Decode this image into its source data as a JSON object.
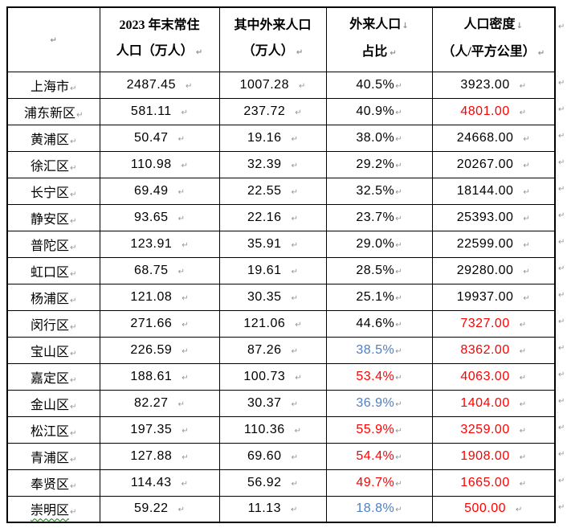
{
  "marks": {
    "paragraph": "↵",
    "line_break": "↓"
  },
  "colors": {
    "red": "#ff0000",
    "blue": "#4d7ec4",
    "black": "#000000",
    "mark": "#8c959e",
    "squiggle": "#067d06"
  },
  "header": {
    "col_resident_line1": "2023 年末常住",
    "col_resident_line2": "人口（万人）",
    "col_migrant_line1": "其中外来人口",
    "col_migrant_line2": "（万人）",
    "col_pct_line1": "外来人口",
    "col_pct_line2": "占比",
    "col_density_line1": "人口密度",
    "col_density_line2": "（人/平方公里）"
  },
  "rows": [
    {
      "district": "上海市",
      "resident": "2487.45",
      "migrant": "1007.28",
      "pct": "40.5%",
      "density": "3923.00",
      "pct_color": "black",
      "density_color": "black",
      "misspell": false
    },
    {
      "district": "浦东新区",
      "resident": "581.11",
      "migrant": "237.72",
      "pct": "40.9%",
      "density": "4801.00",
      "pct_color": "black",
      "density_color": "red",
      "misspell": false
    },
    {
      "district": "黄浦区",
      "resident": "50.47",
      "migrant": "19.16",
      "pct": "38.0%",
      "density": "24668.00",
      "pct_color": "black",
      "density_color": "black",
      "misspell": false
    },
    {
      "district": "徐汇区",
      "resident": "110.98",
      "migrant": "32.39",
      "pct": "29.2%",
      "density": "20267.00",
      "pct_color": "black",
      "density_color": "black",
      "misspell": false
    },
    {
      "district": "长宁区",
      "resident": "69.49",
      "migrant": "22.55",
      "pct": "32.5%",
      "density": "18144.00",
      "pct_color": "black",
      "density_color": "black",
      "misspell": false
    },
    {
      "district": "静安区",
      "resident": "93.65",
      "migrant": "22.16",
      "pct": "23.7%",
      "density": "25393.00",
      "pct_color": "black",
      "density_color": "black",
      "misspell": false
    },
    {
      "district": "普陀区",
      "resident": "123.91",
      "migrant": "35.91",
      "pct": "29.0%",
      "density": "22599.00",
      "pct_color": "black",
      "density_color": "black",
      "misspell": false
    },
    {
      "district": "虹口区",
      "resident": "68.75",
      "migrant": "19.61",
      "pct": "28.5%",
      "density": "29280.00",
      "pct_color": "black",
      "density_color": "black",
      "misspell": false
    },
    {
      "district": "杨浦区",
      "resident": "121.08",
      "migrant": "30.35",
      "pct": "25.1%",
      "density": "19937.00",
      "pct_color": "black",
      "density_color": "black",
      "misspell": false
    },
    {
      "district": "闵行区",
      "resident": "271.66",
      "migrant": "121.06",
      "pct": "44.6%",
      "density": "7327.00",
      "pct_color": "black",
      "density_color": "red",
      "misspell": false
    },
    {
      "district": "宝山区",
      "resident": "226.59",
      "migrant": "87.26",
      "pct": "38.5%",
      "density": "8362.00",
      "pct_color": "blue",
      "density_color": "red",
      "misspell": false
    },
    {
      "district": "嘉定区",
      "resident": "188.61",
      "migrant": "100.73",
      "pct": "53.4%",
      "density": "4063.00",
      "pct_color": "red",
      "density_color": "red",
      "misspell": false
    },
    {
      "district": "金山区",
      "resident": "82.27",
      "migrant": "30.37",
      "pct": "36.9%",
      "density": "1404.00",
      "pct_color": "blue",
      "density_color": "red",
      "misspell": false
    },
    {
      "district": "松江区",
      "resident": "197.35",
      "migrant": "110.36",
      "pct": "55.9%",
      "density": "3259.00",
      "pct_color": "red",
      "density_color": "red",
      "misspell": false
    },
    {
      "district": "青浦区",
      "resident": "127.88",
      "migrant": "69.60",
      "pct": "54.4%",
      "density": "1908.00",
      "pct_color": "red",
      "density_color": "red",
      "misspell": false
    },
    {
      "district": "奉贤区",
      "resident": "114.43",
      "migrant": "56.92",
      "pct": "49.7%",
      "density": "1665.00",
      "pct_color": "red",
      "density_color": "red",
      "misspell": false
    },
    {
      "district": "崇明区",
      "resident": "59.22",
      "migrant": "11.13",
      "pct": "18.8%",
      "density": "500.00",
      "pct_color": "blue",
      "density_color": "red",
      "misspell": true
    }
  ]
}
